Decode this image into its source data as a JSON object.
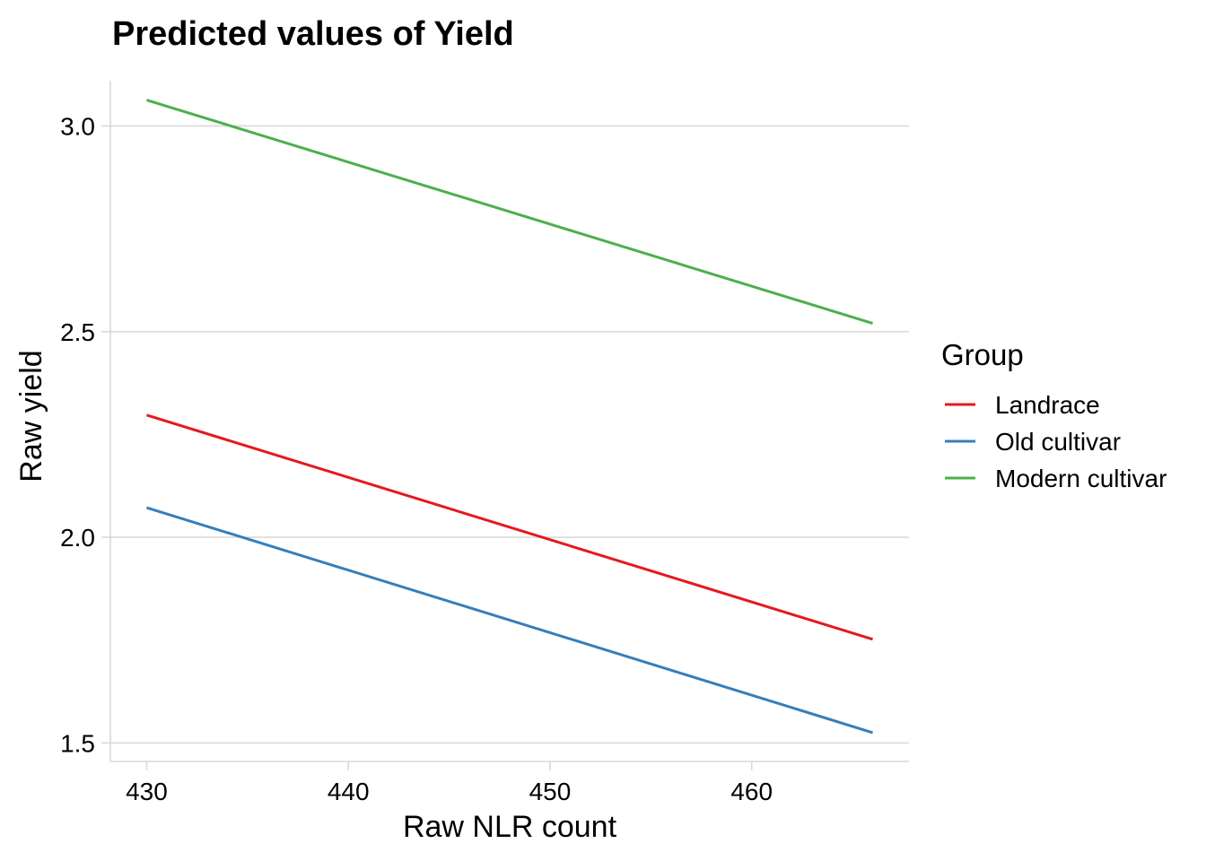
{
  "chart_data": {
    "type": "line",
    "title": "Predicted values of Yield",
    "xlabel": "Raw NLR count",
    "ylabel": "Raw yield",
    "xlim": [
      428.2,
      467.8
    ],
    "ylim": [
      1.455,
      3.11
    ],
    "x_ticks": [
      430,
      440,
      450,
      460
    ],
    "x_tick_labels": [
      "430",
      "440",
      "450",
      "460"
    ],
    "y_ticks": [
      1.5,
      2.0,
      2.5,
      3.0
    ],
    "y_tick_labels": [
      "1.5",
      "2.0",
      "2.5",
      "3.0"
    ],
    "grid": "horizontal major",
    "legend": {
      "title": "Group",
      "position": "right"
    },
    "series": [
      {
        "name": "Landrace",
        "color": "#e41a1c",
        "x": [
          430,
          466
        ],
        "y": [
          2.297,
          1.752
        ]
      },
      {
        "name": "Old cultivar",
        "color": "#377eb8",
        "x": [
          430,
          466
        ],
        "y": [
          2.072,
          1.525
        ]
      },
      {
        "name": "Modern cultivar",
        "color": "#4daf4a",
        "x": [
          430,
          466
        ],
        "y": [
          3.063,
          2.52
        ]
      }
    ]
  }
}
